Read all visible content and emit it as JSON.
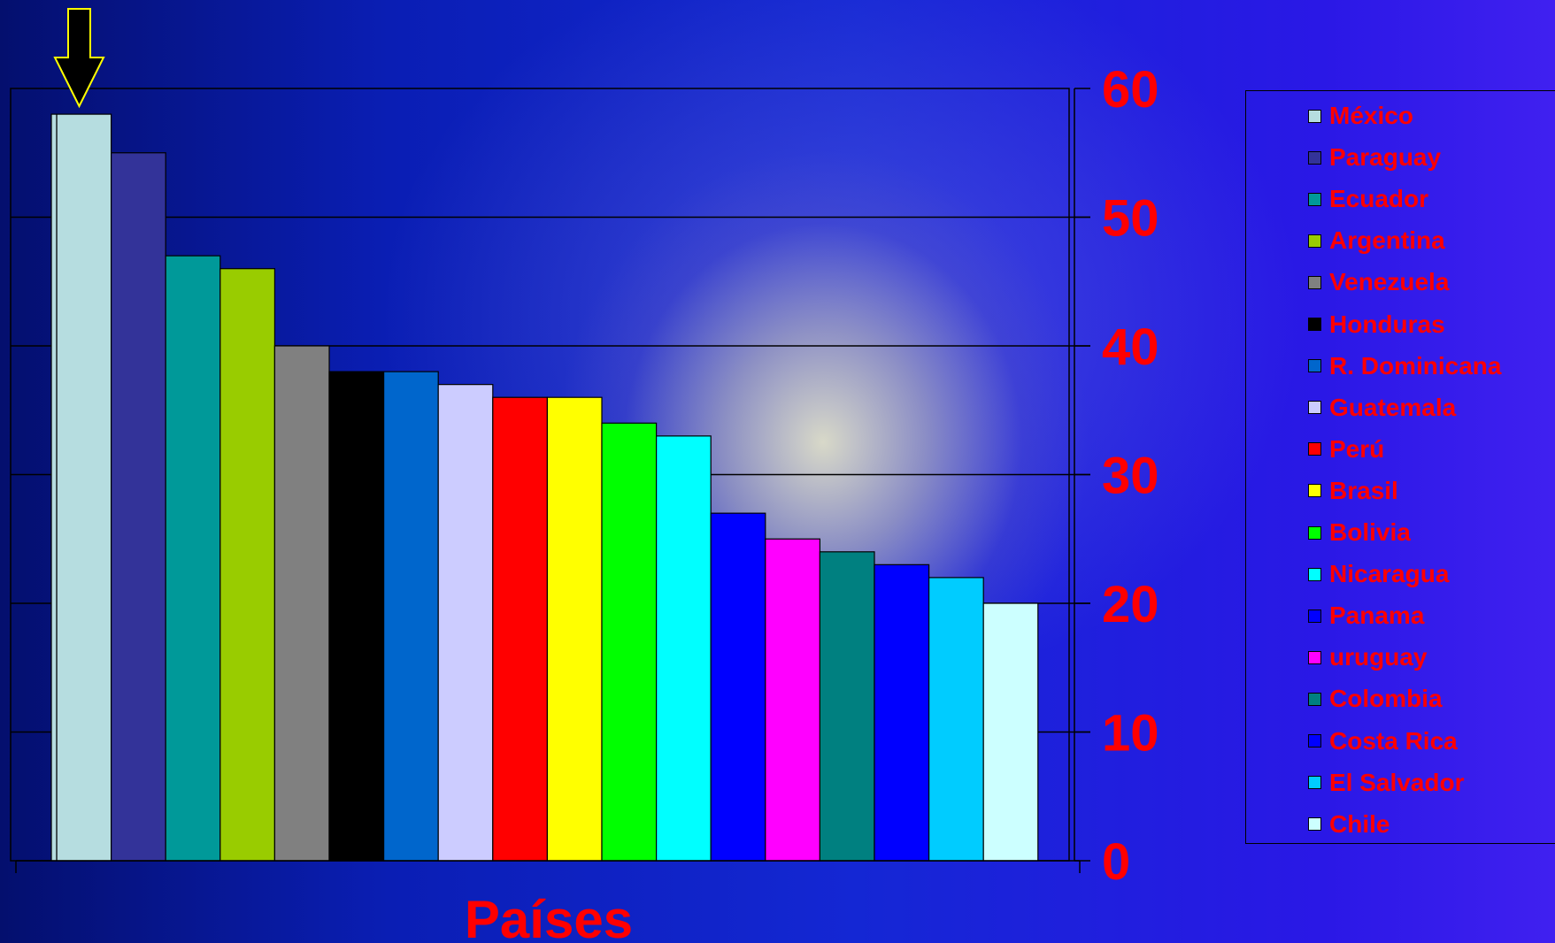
{
  "chart_data": {
    "type": "bar",
    "xlabel": "Países",
    "ylabel": "",
    "ylim": [
      0,
      60
    ],
    "yticks": [
      "0",
      "10",
      "20",
      "30",
      "40",
      "50",
      "60"
    ],
    "y_axis_side": "right",
    "grid": true,
    "legend_position": "right",
    "highlight_marker": "arrow-down above México",
    "categories": [
      "México",
      "Paraguay",
      "Ecuador",
      "Argentina",
      "Venezuela",
      "Honduras",
      "R. Dominicana",
      "Guatemala",
      "Perú",
      "Brasil",
      "Bolivia",
      "Nicaragua",
      "Panama",
      "uruguay",
      "Colombia",
      "Costa Rica",
      "El Salvador",
      "Chile"
    ],
    "values": [
      58,
      55,
      47,
      46,
      40,
      38,
      38,
      37,
      36,
      36,
      34,
      33,
      27,
      25,
      24,
      23,
      22,
      20
    ],
    "colors": [
      "#b6dde0",
      "#333399",
      "#009999",
      "#99cc00",
      "#808080",
      "#000000",
      "#0066cc",
      "#ccccff",
      "#ff0000",
      "#ffff00",
      "#00ff00",
      "#00ffff",
      "#0000ff",
      "#ff00ff",
      "#008080",
      "#0000ff",
      "#00ccff",
      "#ccffff"
    ]
  }
}
